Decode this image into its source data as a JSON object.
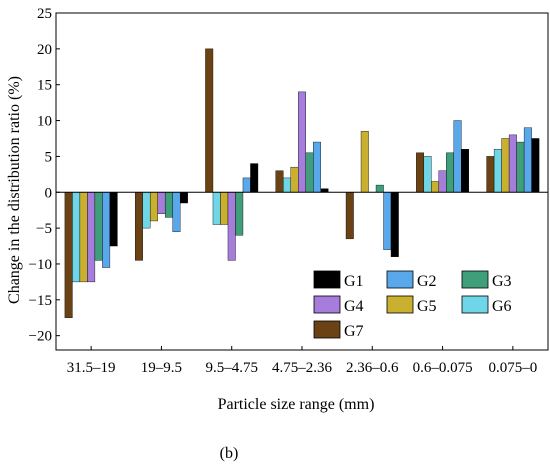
{
  "chart_data": {
    "type": "bar",
    "xlabel": "Particle size range (mm)",
    "ylabel": "Change in the distribution ratio (%)",
    "panel_label": "(b)",
    "ylim": [
      -22,
      25
    ],
    "yticks": [
      -20,
      -15,
      -10,
      -5,
      0,
      5,
      10,
      15,
      20,
      25
    ],
    "categories": [
      "31.5–19",
      "19–9.5",
      "9.5–4.75",
      "4.75–2.36",
      "2.36–0.6",
      "0.6–0.075",
      "0.075–0"
    ],
    "legend_position": "lower-right",
    "grid": false,
    "series": [
      {
        "name": "G1",
        "color": "#000000",
        "values": [
          -7.5,
          -1.5,
          4.0,
          0.5,
          -9.0,
          6.0,
          7.5
        ]
      },
      {
        "name": "G2",
        "color": "#5aa8ec",
        "values": [
          -10.5,
          -5.5,
          2.0,
          7.0,
          -8.0,
          10.0,
          9.0
        ]
      },
      {
        "name": "G3",
        "color": "#3f9f7a",
        "values": [
          -9.5,
          -3.5,
          -6.0,
          5.5,
          1.0,
          5.5,
          7.0
        ]
      },
      {
        "name": "G4",
        "color": "#a77ddc",
        "values": [
          -12.5,
          -3.0,
          -9.5,
          14.0,
          0.0,
          3.0,
          8.0
        ]
      },
      {
        "name": "G5",
        "color": "#c9b02f",
        "values": [
          -12.5,
          -4.0,
          -4.5,
          3.5,
          8.5,
          1.5,
          7.5
        ]
      },
      {
        "name": "G6",
        "color": "#6fd6e8",
        "values": [
          -12.5,
          -5.0,
          -4.5,
          2.0,
          0.0,
          5.0,
          6.0
        ]
      },
      {
        "name": "G7",
        "color": "#6b4214",
        "values": [
          -17.5,
          -9.5,
          20.0,
          3.0,
          -6.5,
          5.5,
          5.0
        ]
      }
    ],
    "display_order": [
      "G7",
      "G6",
      "G5",
      "G4",
      "G3",
      "G2",
      "G1"
    ]
  }
}
